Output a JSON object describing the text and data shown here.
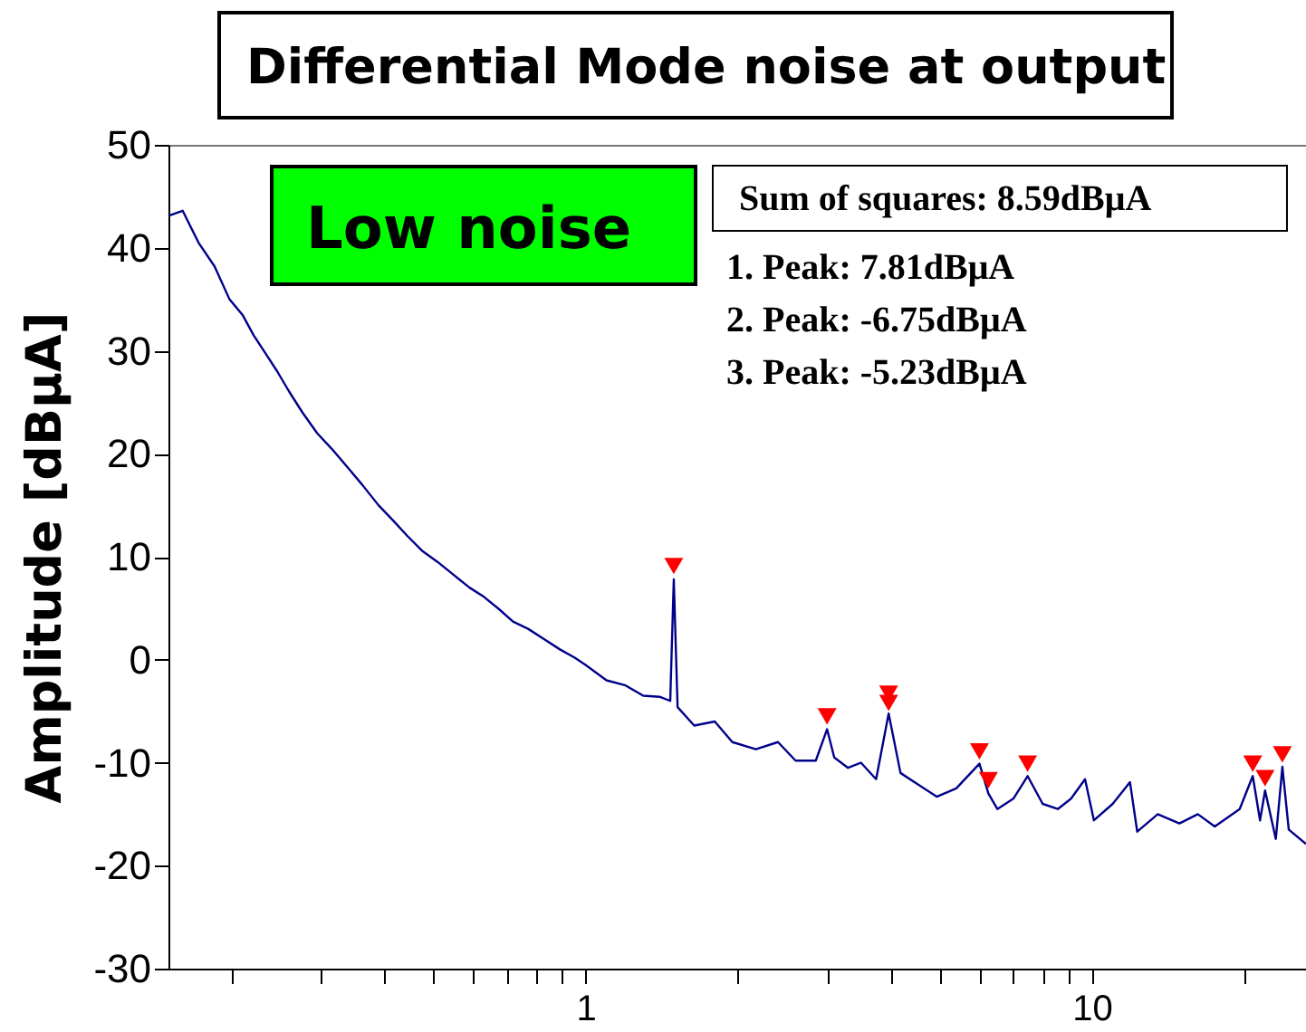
{
  "chart_data": {
    "type": "line",
    "title": "Differential Mode noise at output",
    "ylabel": "Amplitude [dBμA]",
    "annotations": [
      "Low noise",
      "Sum of squares: 8.59dBμA",
      "1. Peak: 7.81dBμA",
      "2. Peak: -6.75dBμA",
      "3. Peak: -5.23dBμA"
    ],
    "log": "x",
    "grid": false,
    "xlim": [
      0.15,
      26.5
    ],
    "xticks": [
      {
        "value": 0.2,
        "label": null
      },
      {
        "value": 0.3,
        "label": null
      },
      {
        "value": 0.4,
        "label": null
      },
      {
        "value": 0.5,
        "label": null
      },
      {
        "value": 0.6,
        "label": null
      },
      {
        "value": 0.7,
        "label": null
      },
      {
        "value": 0.8,
        "label": null
      },
      {
        "value": 0.9,
        "label": null
      },
      1,
      {
        "value": 2,
        "label": null
      },
      {
        "value": 3,
        "label": null
      },
      {
        "value": 4,
        "label": null
      },
      {
        "value": 5,
        "label": null
      },
      {
        "value": 6,
        "label": null
      },
      {
        "value": 7,
        "label": null
      },
      {
        "value": 8,
        "label": null
      },
      {
        "value": 9,
        "label": null
      },
      10,
      {
        "value": 20,
        "label": null
      }
    ],
    "ylim": [
      -30,
      50
    ],
    "yticks": [
      -30,
      -20,
      -10,
      0,
      10,
      20,
      30,
      40,
      50
    ],
    "series": [
      {
        "color": "#00008b",
        "marker": "none",
        "x": [
          0.15,
          0.16,
          0.172,
          0.185,
          0.198,
          0.21,
          0.221,
          0.235,
          0.246,
          0.26,
          0.276,
          0.295,
          0.315,
          0.34,
          0.362,
          0.39,
          0.417,
          0.445,
          0.475,
          0.51,
          0.547,
          0.59,
          0.63,
          0.675,
          0.719,
          0.77,
          0.828,
          0.89,
          0.952,
          1.0,
          1.1,
          1.2,
          1.3,
          1.4,
          1.47,
          1.494,
          1.52,
          1.64,
          1.8,
          1.95,
          2.17,
          2.4,
          2.6,
          2.85,
          3.0,
          3.1,
          3.3,
          3.5,
          3.75,
          3.97,
          4.19,
          4.5,
          4.94,
          5.4,
          6.0,
          6.25,
          6.51,
          7.0,
          7.47,
          8.0,
          8.57,
          9.1,
          9.7,
          10.1,
          11.0,
          11.9,
          12.3,
          13.5,
          14.9,
          16.2,
          17.5,
          19.6,
          20.8,
          21.5,
          22.0,
          23.1,
          23.8,
          24.5,
          26.5
        ],
        "values": [
          43.1,
          43.6,
          40.5,
          38.2,
          35.0,
          33.5,
          31.5,
          29.5,
          28.0,
          26.0,
          24.0,
          22.0,
          20.5,
          18.6,
          17.0,
          15.0,
          13.5,
          12.0,
          10.6,
          9.5,
          8.3,
          7.0,
          6.1,
          4.9,
          3.7,
          3.0,
          2.0,
          1.0,
          0.2,
          -0.5,
          -2.0,
          -2.5,
          -3.5,
          -3.6,
          -4.0,
          7.81,
          -4.6,
          -6.4,
          -6.0,
          -8.0,
          -8.7,
          -8.0,
          -9.8,
          -9.8,
          -6.75,
          -9.5,
          -10.5,
          -10.0,
          -11.6,
          -5.23,
          -11.0,
          -12.0,
          -13.3,
          -12.5,
          -10.1,
          -13.0,
          -14.5,
          -13.5,
          -11.3,
          -14.0,
          -14.5,
          -13.5,
          -11.6,
          -15.6,
          -14.0,
          -11.9,
          -16.7,
          -15.0,
          -15.9,
          -15.0,
          -16.2,
          -14.5,
          -11.3,
          -15.6,
          -12.7,
          -17.4,
          -10.4,
          -16.5,
          -17.9
        ]
      },
      {
        "type": "scatter",
        "color": "#ff0000",
        "marker": "triangle",
        "x": [
          1.494,
          3.0,
          3.97,
          3.97,
          6.0,
          6.25,
          7.47,
          20.8,
          22.0,
          23.8
        ],
        "values": [
          9.1,
          -5.5,
          -3.3,
          -4.2,
          -8.9,
          -11.7,
          -10.1,
          -10.1,
          -11.5,
          -9.2
        ]
      }
    ]
  }
}
